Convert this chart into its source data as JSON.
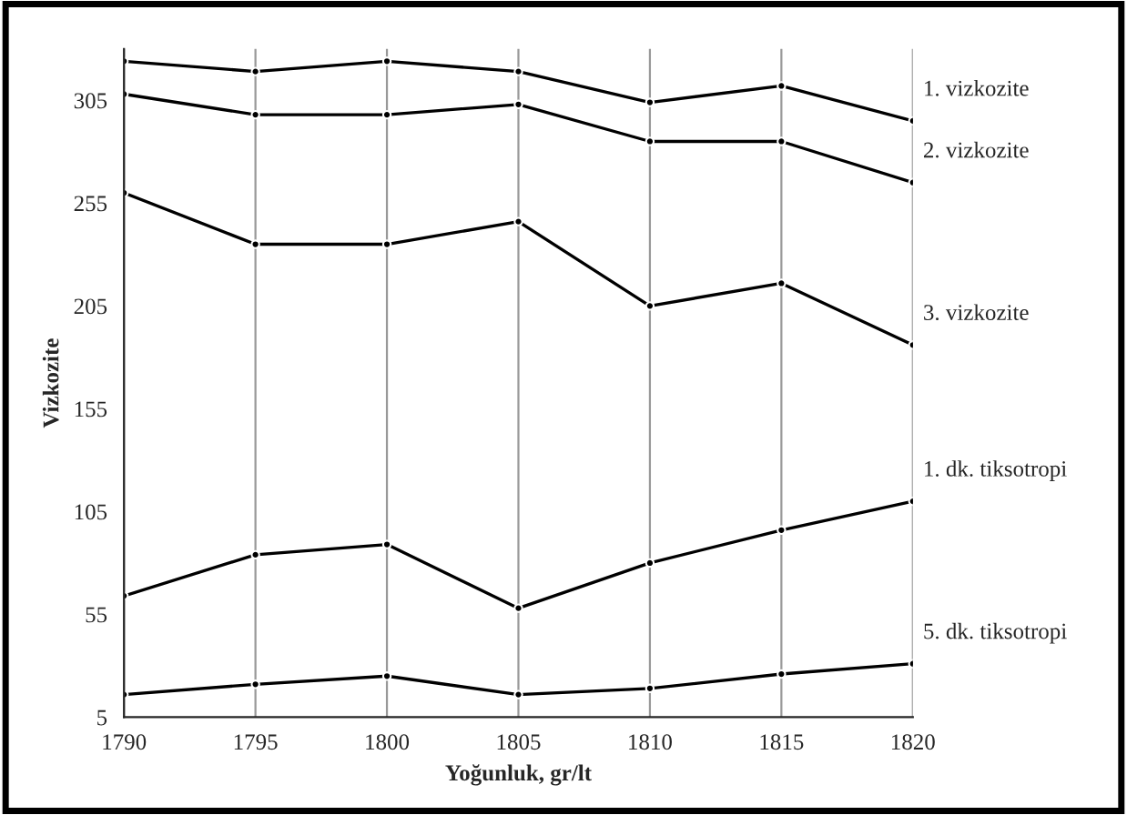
{
  "chart_data": {
    "type": "line",
    "xlabel": "Yoğunluk, gr/lt",
    "ylabel": "Vizkozite",
    "x": [
      1790,
      1795,
      1800,
      1805,
      1810,
      1815,
      1820
    ],
    "series": [
      {
        "name": "1. vizkozite",
        "color": "#000000",
        "values": [
          324,
          319,
          324,
          319,
          304,
          312,
          295
        ]
      },
      {
        "name": "2. vizkozite",
        "color": "#000000",
        "values": [
          308,
          298,
          298,
          303,
          285,
          285,
          265
        ]
      },
      {
        "name": "3. vizkozite",
        "color": "#000000",
        "values": [
          260,
          235,
          235,
          246,
          205,
          216,
          186
        ]
      },
      {
        "name": "1. dk. tiksotropi",
        "color": "#000000",
        "values": [
          64,
          84,
          89,
          58,
          80,
          96,
          110
        ]
      },
      {
        "name": "5. dk. tiksotropi",
        "color": "#000000",
        "values": [
          16,
          21,
          25,
          16,
          19,
          26,
          31
        ]
      }
    ],
    "xlim": [
      1790,
      1820
    ],
    "xticks": [
      1790,
      1795,
      1800,
      1805,
      1810,
      1815,
      1820
    ],
    "ylim": [
      5,
      330
    ],
    "yticks": [
      5,
      55,
      105,
      155,
      205,
      255,
      305
    ],
    "grid": "x",
    "marker": "circle",
    "line_style": "solid",
    "legend": false
  }
}
